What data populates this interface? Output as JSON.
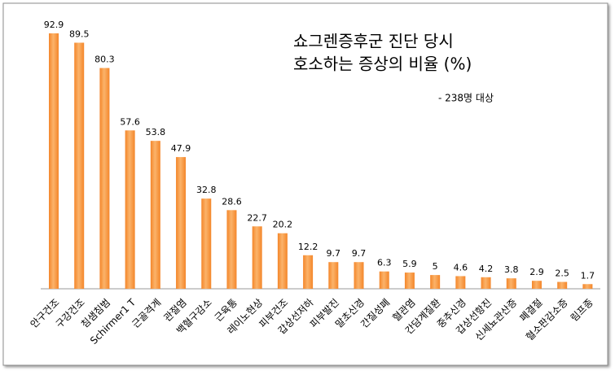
{
  "chart_data": {
    "type": "bar",
    "title": [
      "쇼그렌증후군 진단 당시",
      "호소하는 증상의 비율 (%)"
    ],
    "subtitle": "- 238명 대상",
    "categories": [
      "안구건조",
      "구강건조",
      "침샘침범",
      "Schirmer1 T",
      "근골격계",
      "관절염",
      "백혈구감소",
      "근육통",
      "레이노현상",
      "피부건조",
      "갑상선저하",
      "피부발진",
      "말초신경",
      "간질성폐",
      "혈관염",
      "간담계질환",
      "중추신경",
      "갑상선항진",
      "신세뇨관산증",
      "폐결절",
      "혈소판감소증",
      "림프종"
    ],
    "values": [
      92.9,
      89.5,
      80.3,
      57.6,
      53.8,
      47.9,
      32.8,
      28.6,
      22.7,
      20.2,
      12.2,
      9.7,
      9.7,
      6.3,
      5.9,
      5,
      4.6,
      4.2,
      3.8,
      2.9,
      2.5,
      1.7
    ],
    "color": "#f4862a"
  }
}
